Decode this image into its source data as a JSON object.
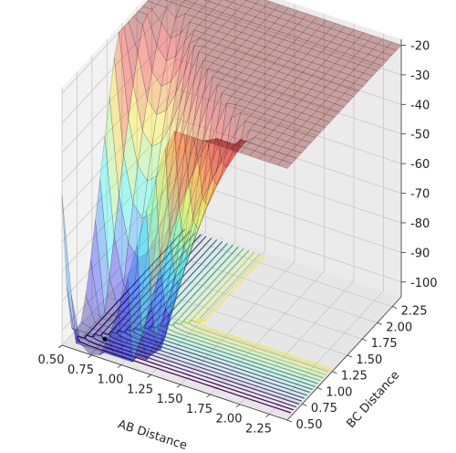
{
  "chart_data": {
    "type": "surface",
    "xlabel": "AB Distance",
    "ylabel": "BC Distance",
    "zlabel": "",
    "x_ticks": [
      "0.50",
      "0.75",
      "1.00",
      "1.25",
      "1.50",
      "1.75",
      "2.00",
      "2.25"
    ],
    "y_ticks": [
      "0.50",
      "0.75",
      "1.00",
      "1.25",
      "1.50",
      "1.75",
      "2.00",
      "2.25"
    ],
    "z_ticks": [
      "-100",
      "-90",
      "-80",
      "-70",
      "-60",
      "-50",
      "-40",
      "-30",
      "-20"
    ],
    "xlim": [
      0.5,
      2.4
    ],
    "ylim": [
      0.5,
      2.4
    ],
    "zlim": [
      -105,
      -18
    ],
    "colormap_surface": "jet",
    "colormap_contour": "viridis",
    "trajectory_start": {
      "x": 0.74,
      "y": 0.74
    }
  }
}
